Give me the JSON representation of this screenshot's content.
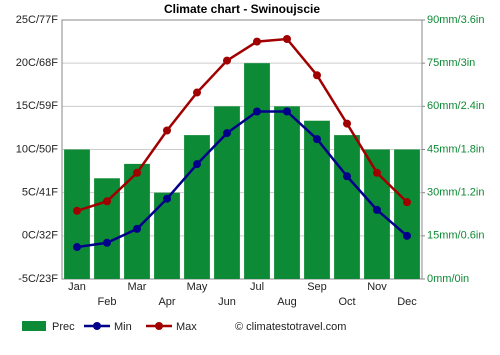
{
  "chart_data": {
    "type": "combo",
    "title": "Climate chart - Swinoujscie",
    "categories": [
      "Jan",
      "Feb",
      "Mar",
      "Apr",
      "May",
      "Jun",
      "Jul",
      "Aug",
      "Sep",
      "Oct",
      "Nov",
      "Dec"
    ],
    "series": [
      {
        "name": "Prec",
        "type": "bar",
        "axis": "y2",
        "color": "#0d8a35",
        "values": [
          45,
          35,
          40,
          30,
          50,
          60,
          75,
          60,
          55,
          50,
          45,
          45
        ]
      },
      {
        "name": "Min",
        "type": "line",
        "color": "#00008b",
        "values": [
          -1.3,
          -0.8,
          0.8,
          4.3,
          8.3,
          11.9,
          14.4,
          14.4,
          11.2,
          6.9,
          3.0,
          0.0
        ]
      },
      {
        "name": "Max",
        "type": "line",
        "color": "#a00000",
        "values": [
          2.9,
          4.0,
          7.3,
          12.2,
          16.6,
          20.3,
          22.5,
          22.8,
          18.6,
          13.0,
          7.3,
          3.9
        ]
      }
    ],
    "ylim": [
      -5,
      25
    ],
    "yticks": [
      {
        "value": -5,
        "label": "-5C/23F"
      },
      {
        "value": 0,
        "label": "0C/32F"
      },
      {
        "value": 5,
        "label": "5C/41F"
      },
      {
        "value": 10,
        "label": "10C/50F"
      },
      {
        "value": 15,
        "label": "15C/59F"
      },
      {
        "value": 20,
        "label": "20C/68F"
      },
      {
        "value": 25,
        "label": "25C/77F"
      }
    ],
    "y2lim": [
      0,
      90
    ],
    "y2ticks": [
      {
        "value": 0,
        "label": "0mm/0in"
      },
      {
        "value": 15,
        "label": "15mm/0.6in"
      },
      {
        "value": 30,
        "label": "30mm/1.2in"
      },
      {
        "value": 45,
        "label": "45mm/1.8in"
      },
      {
        "value": 60,
        "label": "60mm/2.4in"
      },
      {
        "value": 75,
        "label": "75mm/3in"
      },
      {
        "value": 90,
        "label": "90mm/3.6in"
      }
    ],
    "grid": true,
    "source": "© climatestotravel.com"
  }
}
